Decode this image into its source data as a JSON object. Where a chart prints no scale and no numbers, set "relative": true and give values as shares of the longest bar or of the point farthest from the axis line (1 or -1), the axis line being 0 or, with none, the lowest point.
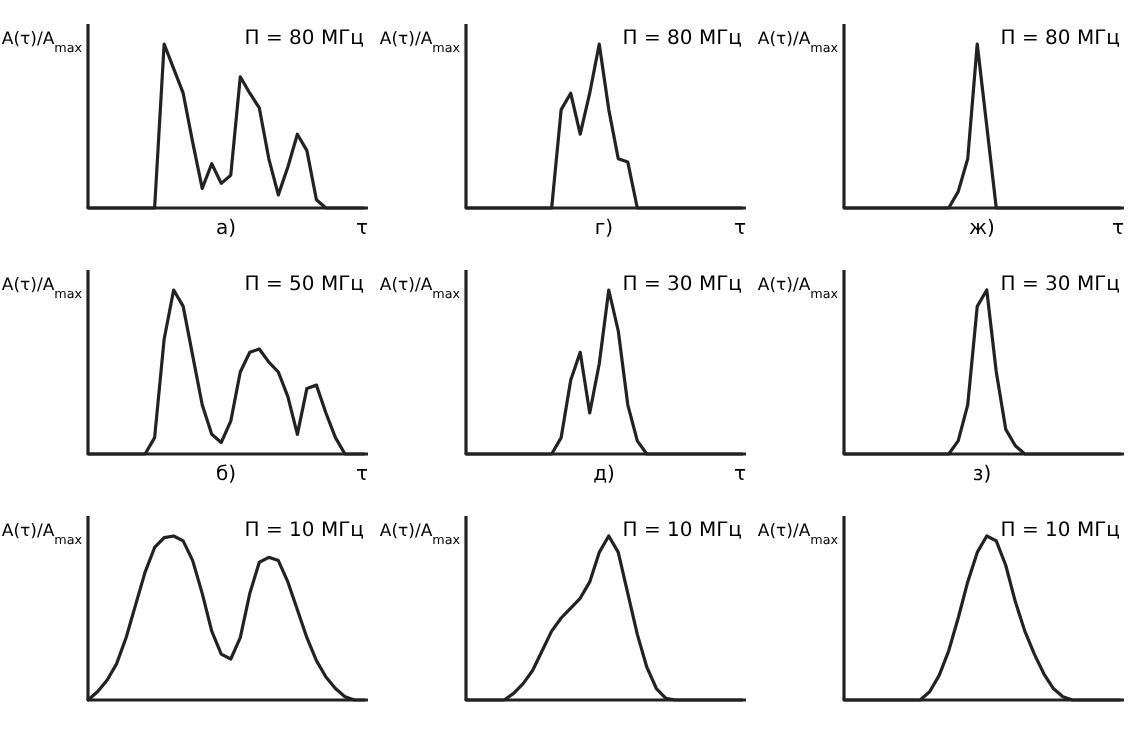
{
  "chart_data": [
    {
      "type": "line",
      "relative": true,
      "title": "П = 80 МГц",
      "ylabel": "A(τ)/A$_{max}$",
      "xlabel": "τ",
      "annotations": [
        "а)"
      ],
      "categories": [
        null,
        null,
        null,
        null,
        null,
        null,
        null,
        null,
        null,
        null,
        null,
        null,
        null,
        null,
        null,
        null,
        null,
        null,
        null,
        null,
        null,
        null,
        null,
        null,
        null,
        null,
        null,
        null,
        null,
        null
      ],
      "series": [
        {
          "color": "#222222",
          "values": [
            0,
            0,
            0,
            0,
            0,
            0,
            0,
            0,
            1,
            0.85,
            0.7,
            0.4,
            0.12,
            0.27,
            0.15,
            0.2,
            0.8,
            0.7,
            0.61,
            0.3,
            0.08,
            0.25,
            0.45,
            0.35,
            0.05,
            0,
            0,
            0,
            0,
            0
          ]
        }
      ]
    },
    {
      "type": "line",
      "relative": true,
      "title": "П = 80 МГц",
      "ylabel": "A(τ)/A$_{max}$",
      "xlabel": "τ",
      "annotations": [
        "г)"
      ],
      "categories": [
        null,
        null,
        null,
        null,
        null,
        null,
        null,
        null,
        null,
        null,
        null,
        null,
        null,
        null,
        null,
        null,
        null,
        null,
        null,
        null,
        null,
        null,
        null,
        null,
        null,
        null,
        null,
        null,
        null,
        null
      ],
      "series": [
        {
          "color": "#222222",
          "values": [
            0,
            0,
            0,
            0,
            0,
            0,
            0,
            0,
            0,
            0,
            0.6,
            0.7,
            0.45,
            0.7,
            1,
            0.6,
            0.3,
            0.28,
            0,
            0,
            0,
            0,
            0,
            0,
            0,
            0,
            0,
            0,
            0,
            0
          ]
        }
      ]
    },
    {
      "type": "line",
      "relative": true,
      "title": "П = 80 МГц",
      "ylabel": "A(τ)/A$_{max}$",
      "xlabel": "τ",
      "annotations": [
        "ж)"
      ],
      "categories": [
        null,
        null,
        null,
        null,
        null,
        null,
        null,
        null,
        null,
        null,
        null,
        null,
        null,
        null,
        null,
        null,
        null,
        null,
        null,
        null,
        null,
        null,
        null,
        null,
        null,
        null,
        null,
        null,
        null,
        null
      ],
      "series": [
        {
          "color": "#222222",
          "values": [
            0,
            0,
            0,
            0,
            0,
            0,
            0,
            0,
            0,
            0,
            0,
            0,
            0.1,
            0.3,
            1,
            0.5,
            0,
            0,
            0,
            0,
            0,
            0,
            0,
            0,
            0,
            0,
            0,
            0,
            0,
            0
          ]
        }
      ]
    },
    {
      "type": "line",
      "relative": true,
      "title": "П = 50 МГц",
      "ylabel": "A(τ)/A$_{max}$",
      "xlabel": "τ",
      "annotations": [
        "б)"
      ],
      "categories": [
        null,
        null,
        null,
        null,
        null,
        null,
        null,
        null,
        null,
        null,
        null,
        null,
        null,
        null,
        null,
        null,
        null,
        null,
        null,
        null,
        null,
        null,
        null,
        null,
        null,
        null,
        null,
        null,
        null,
        null
      ],
      "series": [
        {
          "color": "#222222",
          "values": [
            0,
            0,
            0,
            0,
            0,
            0,
            0,
            0.1,
            0.7,
            1,
            0.9,
            0.6,
            0.3,
            0.12,
            0.07,
            0.2,
            0.5,
            0.62,
            0.64,
            0.56,
            0.5,
            0.35,
            0.12,
            0.4,
            0.42,
            0.25,
            0.1,
            0,
            0,
            0
          ]
        }
      ]
    },
    {
      "type": "line",
      "relative": true,
      "title": "П = 30 МГц",
      "ylabel": "A(τ)/A$_{max}$",
      "xlabel": "τ",
      "annotations": [
        "д)"
      ],
      "categories": [
        null,
        null,
        null,
        null,
        null,
        null,
        null,
        null,
        null,
        null,
        null,
        null,
        null,
        null,
        null,
        null,
        null,
        null,
        null,
        null,
        null,
        null,
        null,
        null,
        null,
        null,
        null,
        null,
        null,
        null
      ],
      "series": [
        {
          "color": "#222222",
          "values": [
            0,
            0,
            0,
            0,
            0,
            0,
            0,
            0,
            0,
            0,
            0.1,
            0.45,
            0.62,
            0.25,
            0.55,
            1,
            0.75,
            0.3,
            0.08,
            0,
            0,
            0,
            0,
            0,
            0,
            0,
            0,
            0,
            0,
            0
          ]
        }
      ]
    },
    {
      "type": "line",
      "relative": true,
      "title": "П = 30 МГц",
      "ylabel": "A(τ)/A$_{max}$",
      "annotations": [
        "з)"
      ],
      "categories": [
        null,
        null,
        null,
        null,
        null,
        null,
        null,
        null,
        null,
        null,
        null,
        null,
        null,
        null,
        null,
        null,
        null,
        null,
        null,
        null,
        null,
        null,
        null,
        null,
        null,
        null,
        null,
        null,
        null,
        null
      ],
      "series": [
        {
          "color": "#222222",
          "values": [
            0,
            0,
            0,
            0,
            0,
            0,
            0,
            0,
            0,
            0,
            0,
            0,
            0.08,
            0.3,
            0.9,
            1,
            0.5,
            0.15,
            0.05,
            0,
            0,
            0,
            0,
            0,
            0,
            0,
            0,
            0,
            0,
            0
          ]
        }
      ]
    },
    {
      "type": "line",
      "relative": true,
      "title": "П = 10 МГц",
      "ylabel": "A(τ)/A$_{max}$",
      "categories": [
        null,
        null,
        null,
        null,
        null,
        null,
        null,
        null,
        null,
        null,
        null,
        null,
        null,
        null,
        null,
        null,
        null,
        null,
        null,
        null,
        null,
        null,
        null,
        null,
        null,
        null,
        null,
        null,
        null,
        null
      ],
      "series": [
        {
          "color": "#222222",
          "values": [
            0,
            0.05,
            0.12,
            0.22,
            0.38,
            0.58,
            0.78,
            0.93,
            0.99,
            1,
            0.97,
            0.85,
            0.65,
            0.42,
            0.28,
            0.25,
            0.38,
            0.65,
            0.84,
            0.87,
            0.85,
            0.72,
            0.55,
            0.38,
            0.24,
            0.14,
            0.07,
            0.02,
            0,
            0
          ]
        }
      ]
    },
    {
      "type": "line",
      "relative": true,
      "title": "П = 10 МГц",
      "ylabel": "A(τ)/A$_{max}$",
      "categories": [
        null,
        null,
        null,
        null,
        null,
        null,
        null,
        null,
        null,
        null,
        null,
        null,
        null,
        null,
        null,
        null,
        null,
        null,
        null,
        null,
        null,
        null,
        null,
        null,
        null,
        null,
        null,
        null,
        null,
        null
      ],
      "series": [
        {
          "color": "#222222",
          "values": [
            0,
            0,
            0,
            0,
            0,
            0.04,
            0.1,
            0.18,
            0.3,
            0.42,
            0.5,
            0.56,
            0.62,
            0.72,
            0.9,
            1,
            0.9,
            0.65,
            0.4,
            0.2,
            0.07,
            0.01,
            0,
            0,
            0,
            0,
            0,
            0,
            0,
            0
          ]
        }
      ]
    },
    {
      "type": "line",
      "relative": true,
      "title": "П = 10 МГц",
      "ylabel": "A(τ)/A$_{max}$",
      "categories": [
        null,
        null,
        null,
        null,
        null,
        null,
        null,
        null,
        null,
        null,
        null,
        null,
        null,
        null,
        null,
        null,
        null,
        null,
        null,
        null,
        null,
        null,
        null,
        null,
        null,
        null,
        null,
        null,
        null,
        null
      ],
      "series": [
        {
          "color": "#222222",
          "values": [
            0,
            0,
            0,
            0,
            0,
            0,
            0,
            0,
            0,
            0.05,
            0.15,
            0.3,
            0.5,
            0.72,
            0.9,
            1,
            0.97,
            0.82,
            0.6,
            0.42,
            0.28,
            0.16,
            0.07,
            0.02,
            0,
            0,
            0,
            0,
            0,
            0
          ]
        }
      ]
    }
  ]
}
